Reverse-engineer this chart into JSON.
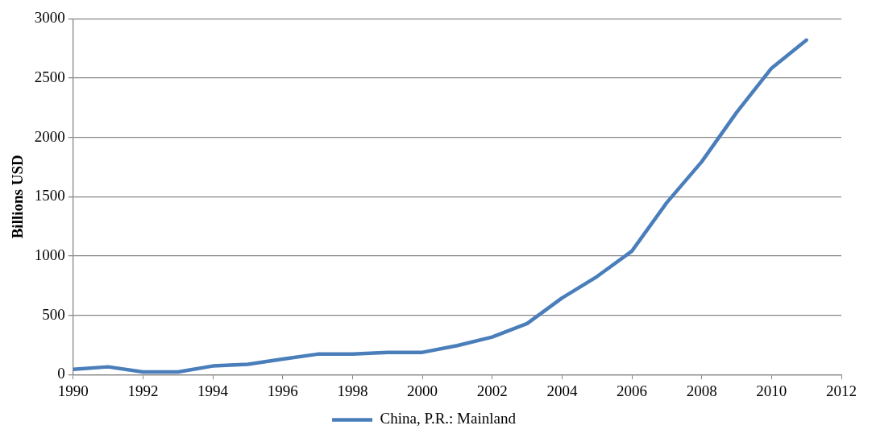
{
  "chart_data": {
    "type": "line",
    "ylabel": "Billions USD",
    "x": [
      1990,
      1991,
      1992,
      1993,
      1994,
      1995,
      1996,
      1997,
      1998,
      1999,
      2000,
      2001,
      2002,
      2003,
      2004,
      2005,
      2006,
      2007,
      2008,
      2009,
      2010,
      2011
    ],
    "series": [
      {
        "name": "China, P.R.: Mainland",
        "color": "#4a7ebb",
        "values": [
          43,
          65,
          22,
          22,
          72,
          86,
          130,
          172,
          172,
          187,
          187,
          244,
          316,
          430,
          646,
          826,
          1041,
          1450,
          1795,
          2211,
          2584,
          2821
        ]
      }
    ],
    "xlim": [
      1990,
      2012
    ],
    "xticks": [
      1990,
      1992,
      1994,
      1996,
      1998,
      2000,
      2002,
      2004,
      2006,
      2008,
      2010,
      2012
    ],
    "ylim": [
      0,
      3000
    ],
    "yticks": [
      0,
      500,
      1000,
      1500,
      2000,
      2500,
      3000
    ],
    "grid": "y",
    "legend": "bottom",
    "marker": "none",
    "line_style": "solid"
  }
}
